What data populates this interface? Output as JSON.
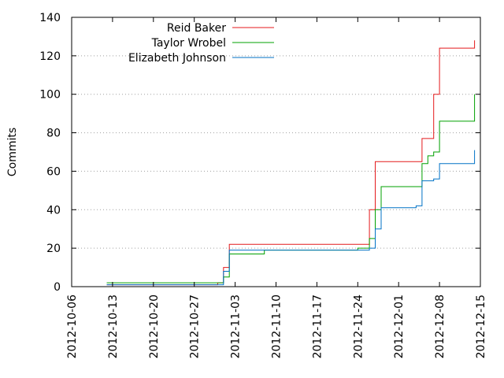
{
  "chart_data": {
    "type": "line",
    "title": "",
    "xlabel": "",
    "ylabel": "Commits",
    "ylim": [
      0,
      140
    ],
    "xlim": [
      "2012-10-06",
      "2012-12-15"
    ],
    "x_ticks": [
      "2012-10-06",
      "2012-10-13",
      "2012-10-20",
      "2012-10-27",
      "2012-11-03",
      "2012-11-10",
      "2012-11-17",
      "2012-11-24",
      "2012-12-01",
      "2012-12-08",
      "2012-12-15"
    ],
    "y_ticks": [
      0,
      20,
      40,
      60,
      80,
      100,
      120,
      140
    ],
    "grid": true,
    "legend_position": "top-left",
    "series": [
      {
        "name": "Reid Baker",
        "color": "#e41a1c",
        "points": [
          [
            "2012-10-12",
            1
          ],
          [
            "2012-10-31",
            2
          ],
          [
            "2012-11-01",
            10
          ],
          [
            "2012-11-02",
            22
          ],
          [
            "2012-11-26",
            22
          ],
          [
            "2012-11-26",
            40
          ],
          [
            "2012-11-27",
            45
          ],
          [
            "2012-11-27",
            65
          ],
          [
            "2012-12-05",
            65
          ],
          [
            "2012-12-05",
            77
          ],
          [
            "2012-12-07",
            78
          ],
          [
            "2012-12-07",
            100
          ],
          [
            "2012-12-08",
            124
          ],
          [
            "2012-12-14",
            124
          ],
          [
            "2012-12-14",
            128
          ]
        ]
      },
      {
        "name": "Taylor Wrobel",
        "color": "#00a000",
        "points": [
          [
            "2012-10-12",
            2
          ],
          [
            "2012-10-31",
            2
          ],
          [
            "2012-11-01",
            5
          ],
          [
            "2012-11-02",
            17
          ],
          [
            "2012-11-08",
            19
          ],
          [
            "2012-11-24",
            20
          ],
          [
            "2012-11-26",
            25
          ],
          [
            "2012-11-27",
            40
          ],
          [
            "2012-11-28",
            52
          ],
          [
            "2012-12-04",
            52
          ],
          [
            "2012-12-05",
            64
          ],
          [
            "2012-12-06",
            68
          ],
          [
            "2012-12-07",
            70
          ],
          [
            "2012-12-08",
            86
          ],
          [
            "2012-12-14",
            87
          ],
          [
            "2012-12-14",
            100
          ]
        ]
      },
      {
        "name": "Elizabeth Johnson",
        "color": "#0072c6",
        "points": [
          [
            "2012-10-12",
            1
          ],
          [
            "2012-10-31",
            1
          ],
          [
            "2012-11-01",
            8
          ],
          [
            "2012-11-02",
            18
          ],
          [
            "2012-11-02",
            19
          ],
          [
            "2012-11-26",
            20
          ],
          [
            "2012-11-27",
            30
          ],
          [
            "2012-11-28",
            41
          ],
          [
            "2012-12-04",
            42
          ],
          [
            "2012-12-05",
            55
          ],
          [
            "2012-12-07",
            56
          ],
          [
            "2012-12-08",
            64
          ],
          [
            "2012-12-14",
            64
          ],
          [
            "2012-12-14",
            66
          ],
          [
            "2012-12-14",
            71
          ]
        ]
      }
    ]
  }
}
